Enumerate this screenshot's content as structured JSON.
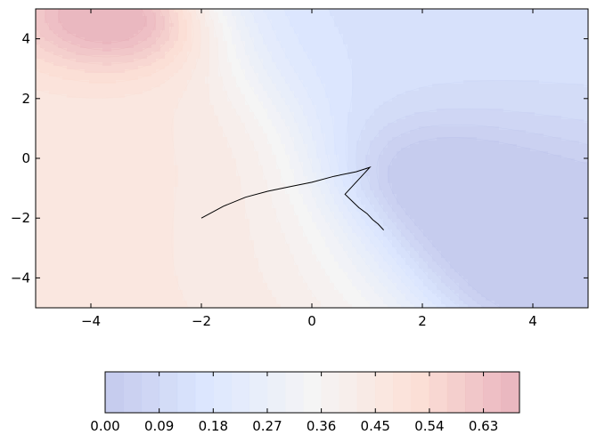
{
  "chart_data": {
    "type": "contour",
    "title": "",
    "xlabel": "",
    "ylabel": "",
    "xlim": [
      -5,
      5
    ],
    "ylim": [
      -5,
      5
    ],
    "x_ticks": [
      -4,
      -2,
      0,
      2,
      4
    ],
    "y_ticks": [
      4,
      2,
      0,
      -2,
      -4
    ],
    "x_tick_labels": [
      "−4",
      "−2",
      "0",
      "2",
      "4"
    ],
    "y_tick_labels": [
      "4",
      "2",
      "0",
      "−2",
      "−4"
    ],
    "grid": false,
    "colormap": "coolwarm",
    "alpha": 0.3,
    "contour_levels": [
      0.0,
      0.03,
      0.06,
      0.09,
      0.12,
      0.15,
      0.18,
      0.21,
      0.24,
      0.27,
      0.3,
      0.33,
      0.36,
      0.39,
      0.42,
      0.45,
      0.48,
      0.51,
      0.54,
      0.57,
      0.6,
      0.63,
      0.66,
      0.69
    ],
    "colorbar": {
      "orientation": "horizontal",
      "placement": "bottom",
      "ticks": [
        0.0,
        0.09,
        0.18,
        0.27,
        0.36,
        0.45,
        0.54,
        0.63
      ],
      "tick_labels": [
        "0.00",
        "0.09",
        "0.18",
        "0.27",
        "0.36",
        "0.45",
        "0.54",
        "0.63"
      ]
    },
    "series": [
      {
        "type": "line",
        "color": "#000000",
        "x": [
          -2.0,
          -1.6,
          -1.2,
          -0.8,
          -0.4,
          0.0,
          0.4,
          0.8,
          1.05,
          0.6,
          0.85,
          1.0,
          1.1,
          1.2,
          1.3
        ],
        "y": [
          -2.0,
          -1.6,
          -1.3,
          -1.1,
          -0.95,
          -0.8,
          -0.6,
          -0.45,
          -0.3,
          -1.2,
          -1.65,
          -1.85,
          -2.05,
          -2.2,
          -2.4
        ]
      }
    ]
  }
}
